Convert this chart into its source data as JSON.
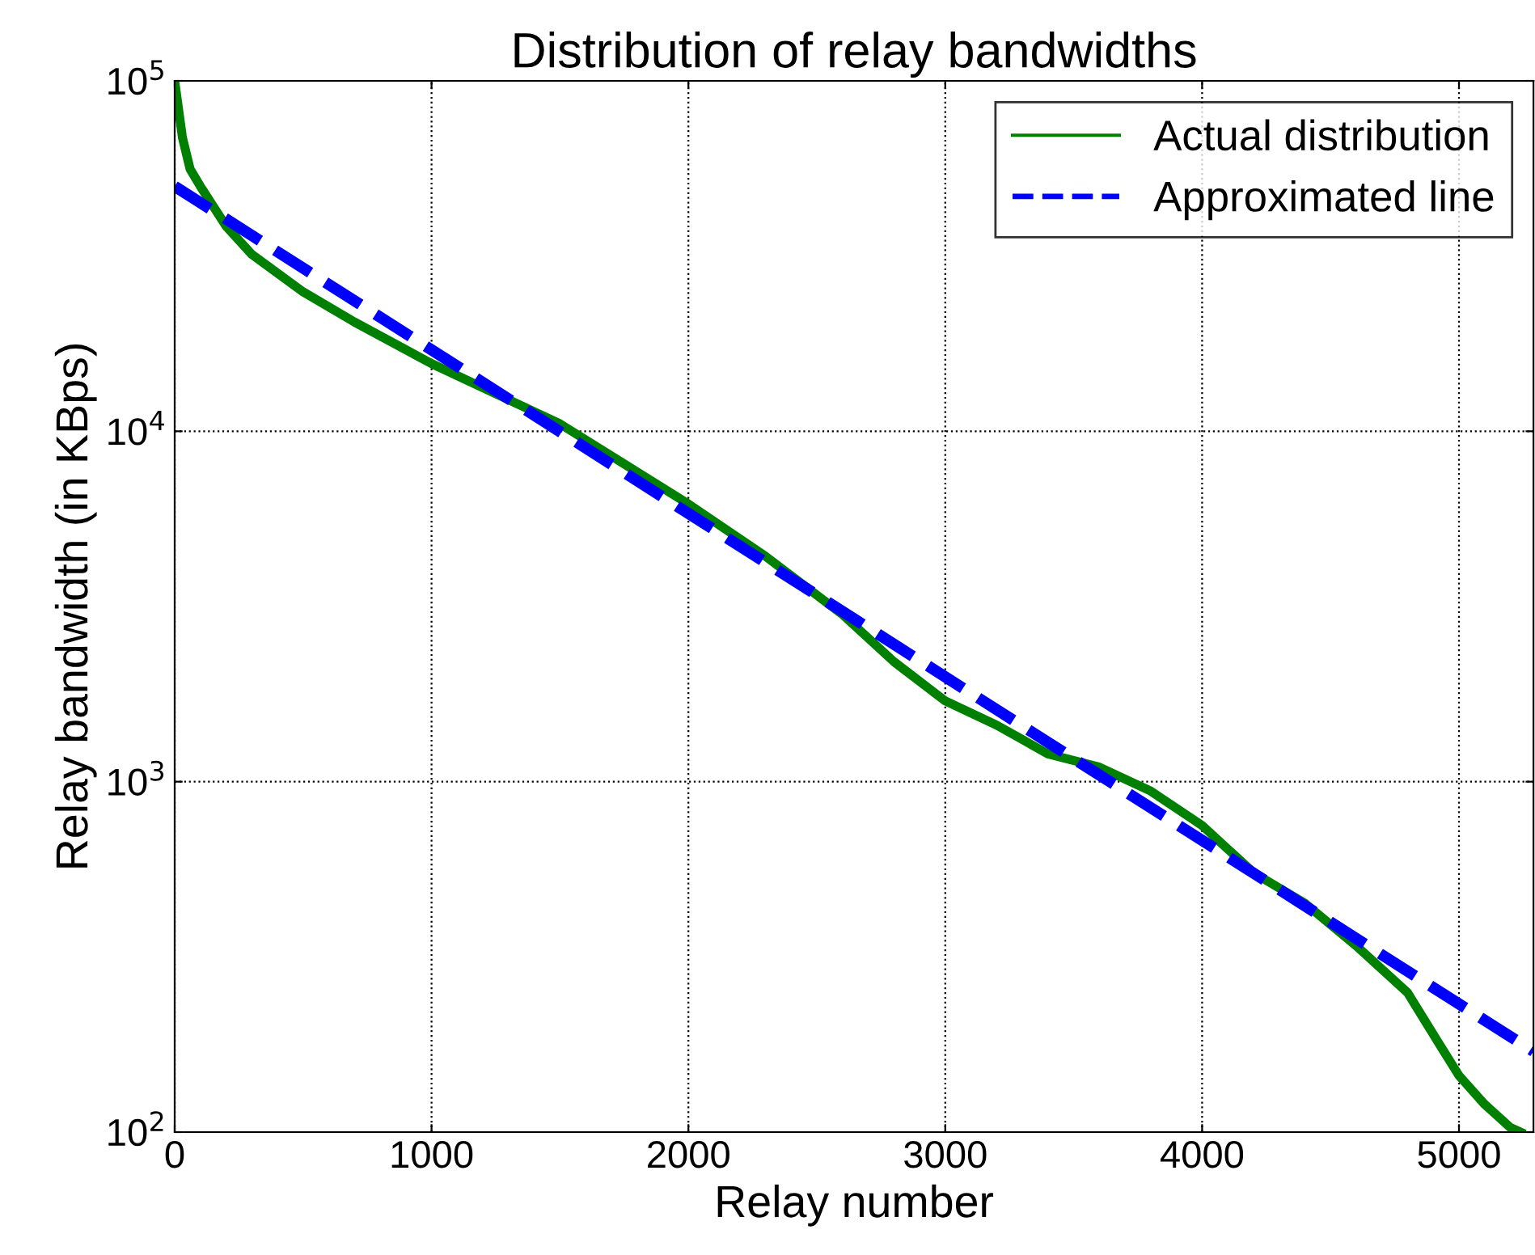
{
  "chart_data": {
    "type": "line",
    "title": "Distribution of relay bandwidths",
    "xlabel": "Relay number",
    "ylabel": "Relay bandwidth (in KBps)",
    "log": "y",
    "xlim": [
      0,
      5290
    ],
    "ylim": [
      100,
      100000
    ],
    "xticks": [
      0,
      1000,
      2000,
      3000,
      4000,
      5000
    ],
    "yticks": [
      {
        "value": 100,
        "label": "10$^{2}$"
      },
      {
        "value": 1000,
        "label": "10$^{3}$"
      },
      {
        "value": 10000,
        "label": "10$^{4}$"
      },
      {
        "value": 100000,
        "label": "10$^{5}$"
      }
    ],
    "grid": true,
    "legend": "top right",
    "series": [
      {
        "name": "Actual distribution",
        "color": "#008000",
        "line_style": "solid",
        "x": [
          0,
          30,
          60,
          100,
          200,
          300,
          500,
          700,
          1000,
          1500,
          2000,
          2300,
          2600,
          2800,
          3000,
          3200,
          3400,
          3600,
          3800,
          4000,
          4200,
          4400,
          4600,
          4800,
          4900,
          5000,
          5100,
          5200,
          5240
        ],
        "values": [
          100000,
          69000,
          56000,
          50000,
          38500,
          32000,
          25000,
          20500,
          15600,
          10500,
          6200,
          4400,
          3000,
          2200,
          1700,
          1450,
          1200,
          1100,
          940,
          750,
          550,
          450,
          340,
          250,
          190,
          145,
          120,
          103,
          100
        ]
      },
      {
        "name": "Approximated line",
        "color": "#0000ff",
        "line_style": "dashed",
        "x": [
          0,
          5290
        ],
        "values": [
          50000,
          170
        ]
      }
    ]
  }
}
